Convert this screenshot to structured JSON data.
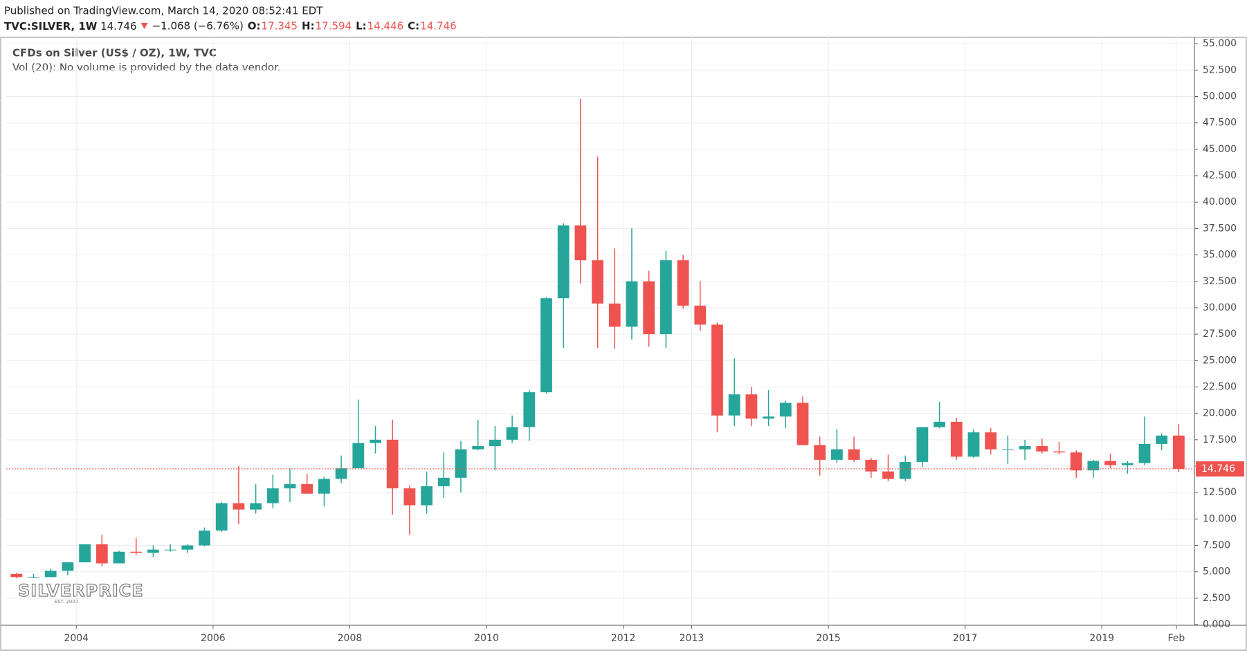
{
  "header": {
    "published": "Published on TradingView.com, March 14, 2020 08:52:41 EDT",
    "symbol": "TVC:SILVER, 1W",
    "last": "14.746",
    "change": "−1.068 (−6.76%)",
    "o_label": "O:",
    "o": "17.345",
    "h_label": "H:",
    "h": "17.594",
    "l_label": "L:",
    "l": "14.446",
    "c_label": "C:",
    "c": "14.746"
  },
  "chart_data": {
    "type": "candlestick",
    "title": "CFDs on Silver (US$ / OZ), 1W, TVC",
    "subtitle": "Vol (20): No volume is provided by the data vendor.",
    "watermark": "SILVERPRICE",
    "watermark_sub": "EST. 2002",
    "up_color": "#26a69a",
    "down_color": "#ef5350",
    "grid": true,
    "x": [
      2003.125,
      2003.375,
      2003.625,
      2003.875,
      2004.125,
      2004.375,
      2004.625,
      2004.875,
      2005.125,
      2005.375,
      2005.625,
      2005.875,
      2006.125,
      2006.375,
      2006.625,
      2006.875,
      2007.125,
      2007.375,
      2007.625,
      2007.875,
      2008.125,
      2008.375,
      2008.625,
      2008.875,
      2009.125,
      2009.375,
      2009.625,
      2009.875,
      2010.125,
      2010.375,
      2010.625,
      2010.875,
      2011.125,
      2011.375,
      2011.625,
      2011.875,
      2012.125,
      2012.375,
      2012.625,
      2012.875,
      2013.125,
      2013.375,
      2013.625,
      2013.875,
      2014.125,
      2014.375,
      2014.625,
      2014.875,
      2015.125,
      2015.375,
      2015.625,
      2015.875,
      2016.125,
      2016.375,
      2016.625,
      2016.875,
      2017.125,
      2017.375,
      2017.625,
      2017.875,
      2018.125,
      2018.375,
      2018.625,
      2018.875,
      2019.125,
      2019.375,
      2019.625,
      2019.875,
      2020.125
    ],
    "open": [
      4.8,
      4.5,
      4.5,
      5.1,
      5.9,
      7.6,
      5.8,
      6.9,
      6.8,
      7.1,
      7.1,
      7.5,
      8.9,
      11.5,
      10.9,
      11.5,
      12.9,
      13.3,
      12.4,
      13.8,
      14.8,
      17.2,
      17.5,
      12.9,
      11.3,
      13.1,
      13.9,
      16.6,
      16.9,
      17.5,
      18.7,
      22.0,
      30.9,
      37.8,
      34.5,
      30.4,
      28.2,
      32.5,
      27.5,
      34.5,
      30.2,
      28.4,
      19.8,
      21.8,
      19.5,
      19.7,
      21.0,
      17.0,
      15.6,
      16.6,
      15.6,
      14.5,
      13.8,
      15.4,
      18.7,
      19.2,
      15.9,
      18.2,
      16.6,
      16.6,
      16.9,
      16.4,
      16.3,
      14.6,
      15.5,
      15.1,
      15.3,
      17.1,
      17.9
    ],
    "high": [
      4.9,
      4.8,
      5.3,
      5.9,
      7.6,
      8.5,
      7.0,
      8.2,
      7.5,
      7.6,
      7.6,
      9.2,
      11.6,
      15.0,
      13.3,
      14.2,
      14.8,
      14.3,
      14.0,
      16.0,
      21.3,
      18.8,
      19.4,
      13.2,
      14.5,
      16.3,
      17.4,
      19.4,
      18.8,
      19.8,
      22.2,
      31.0,
      38.0,
      49.8,
      44.3,
      35.6,
      37.5,
      33.5,
      35.4,
      35.0,
      32.5,
      28.6,
      25.2,
      22.5,
      22.2,
      21.2,
      21.6,
      17.8,
      18.5,
      17.8,
      15.8,
      16.1,
      16.0,
      18.7,
      21.1,
      19.6,
      18.5,
      18.6,
      17.9,
      17.5,
      17.6,
      17.3,
      16.5,
      15.6,
      16.2,
      15.5,
      19.7,
      18.1,
      19.0
    ],
    "low": [
      4.4,
      4.4,
      4.5,
      4.7,
      5.9,
      5.5,
      5.8,
      6.6,
      6.4,
      6.9,
      6.8,
      7.4,
      8.8,
      9.5,
      10.5,
      11.0,
      11.6,
      12.4,
      11.2,
      13.4,
      14.8,
      16.2,
      10.4,
      8.5,
      10.5,
      12.0,
      12.5,
      16.5,
      14.6,
      17.2,
      17.4,
      21.9,
      26.2,
      32.3,
      26.2,
      26.1,
      27.0,
      26.3,
      26.2,
      29.9,
      27.8,
      18.2,
      18.8,
      18.8,
      18.8,
      18.6,
      17.0,
      14.1,
      15.3,
      15.4,
      13.9,
      13.6,
      13.6,
      14.9,
      18.6,
      15.6,
      15.8,
      16.1,
      15.2,
      15.6,
      16.2,
      16.1,
      13.9,
      13.9,
      14.8,
      14.3,
      15.1,
      16.5,
      14.45
    ],
    "close": [
      4.5,
      4.5,
      5.1,
      5.9,
      7.6,
      5.8,
      6.9,
      6.8,
      7.1,
      7.1,
      7.5,
      8.9,
      11.5,
      10.9,
      11.5,
      12.9,
      13.3,
      12.4,
      13.8,
      14.8,
      17.2,
      17.5,
      12.9,
      11.3,
      13.1,
      13.9,
      16.6,
      16.9,
      17.5,
      18.7,
      22.0,
      30.9,
      37.8,
      34.5,
      30.4,
      28.2,
      32.5,
      27.5,
      34.5,
      30.2,
      28.4,
      19.8,
      21.8,
      19.5,
      19.7,
      21.0,
      17.0,
      15.6,
      16.6,
      15.6,
      14.5,
      13.8,
      15.4,
      18.7,
      19.2,
      15.9,
      18.2,
      16.6,
      16.6,
      16.9,
      16.4,
      16.3,
      14.6,
      15.5,
      15.1,
      15.3,
      17.1,
      17.9,
      14.746
    ],
    "last_price": 14.746,
    "xlim": [
      2002.975,
      2020.354
    ],
    "xticks": [
      {
        "value": 2004,
        "label": "2004"
      },
      {
        "value": 2006,
        "label": "2006"
      },
      {
        "value": 2008,
        "label": "2008"
      },
      {
        "value": 2010,
        "label": "2010"
      },
      {
        "value": 2012,
        "label": "2012"
      },
      {
        "value": 2013,
        "label": "2013"
      },
      {
        "value": 2015,
        "label": "2015"
      },
      {
        "value": 2017,
        "label": "2017"
      },
      {
        "value": 2019,
        "label": "2019"
      },
      {
        "value": 2020.09,
        "label": "Feb"
      }
    ],
    "ylim": [
      -0.06,
      55.6
    ],
    "yticks": [
      {
        "value": 0,
        "label": "0.000"
      },
      {
        "value": 2.5,
        "label": "2.500"
      },
      {
        "value": 5,
        "label": "5.000"
      },
      {
        "value": 7.5,
        "label": "7.500"
      },
      {
        "value": 10,
        "label": "10.000"
      },
      {
        "value": 12.5,
        "label": "12.500"
      },
      {
        "value": 15,
        "label": "15.000"
      },
      {
        "value": 17.5,
        "label": "17.500"
      },
      {
        "value": 20,
        "label": "20.000"
      },
      {
        "value": 22.5,
        "label": "22.500"
      },
      {
        "value": 25,
        "label": "25.000"
      },
      {
        "value": 27.5,
        "label": "27.500"
      },
      {
        "value": 30,
        "label": "30.000"
      },
      {
        "value": 32.5,
        "label": "32.500"
      },
      {
        "value": 35,
        "label": "35.000"
      },
      {
        "value": 37.5,
        "label": "37.500"
      },
      {
        "value": 40,
        "label": "40.000"
      },
      {
        "value": 42.5,
        "label": "42.500"
      },
      {
        "value": 45,
        "label": "45.000"
      },
      {
        "value": 47.5,
        "label": "47.500"
      },
      {
        "value": 50,
        "label": "50.000"
      },
      {
        "value": 52.5,
        "label": "52.500"
      },
      {
        "value": 55,
        "label": "55.000"
      }
    ]
  }
}
